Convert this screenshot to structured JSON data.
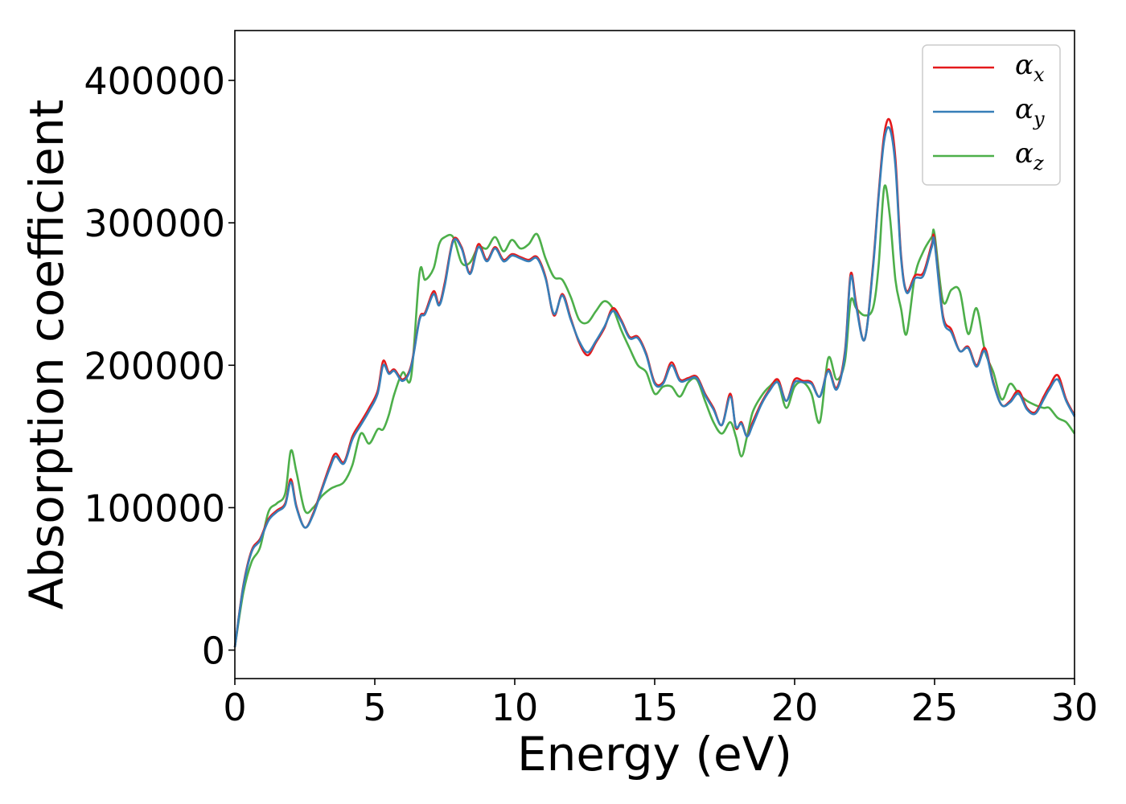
{
  "chart_data": {
    "type": "line",
    "xlabel": "Energy (eV)",
    "ylabel": "Absorption coefficient",
    "xlim": [
      0,
      30
    ],
    "ylim": [
      -20000,
      435000
    ],
    "xticks": [
      "0",
      "5",
      "10",
      "15",
      "20",
      "25",
      "30"
    ],
    "yticks": [
      "0",
      "100000",
      "200000",
      "300000",
      "400000"
    ],
    "grid": false,
    "legend_position": "top-right",
    "series": [
      {
        "name": "α_x",
        "base": "α",
        "sub": "x",
        "color": "#e41a1c",
        "x": [
          0,
          0.3,
          0.6,
          0.9,
          1.2,
          1.5,
          1.8,
          2.0,
          2.2,
          2.5,
          2.8,
          3.1,
          3.4,
          3.6,
          3.9,
          4.2,
          4.5,
          4.8,
          5.1,
          5.3,
          5.5,
          5.7,
          6.0,
          6.3,
          6.6,
          6.8,
          7.1,
          7.3,
          7.5,
          7.8,
          8.1,
          8.4,
          8.7,
          9.0,
          9.3,
          9.6,
          9.9,
          10.2,
          10.5,
          10.8,
          11.1,
          11.4,
          11.7,
          12.0,
          12.3,
          12.6,
          12.9,
          13.2,
          13.5,
          13.8,
          14.1,
          14.4,
          14.7,
          15.0,
          15.3,
          15.6,
          15.9,
          16.2,
          16.5,
          16.8,
          17.1,
          17.4,
          17.7,
          17.9,
          18.1,
          18.3,
          18.5,
          18.8,
          19.1,
          19.4,
          19.7,
          20.0,
          20.3,
          20.6,
          20.9,
          21.2,
          21.5,
          21.8,
          22.0,
          22.2,
          22.5,
          22.8,
          23.0,
          23.2,
          23.4,
          23.6,
          23.8,
          24.0,
          24.3,
          24.6,
          24.9,
          25.0,
          25.3,
          25.6,
          25.9,
          26.2,
          26.5,
          26.8,
          27.1,
          27.4,
          27.7,
          28.0,
          28.3,
          28.6,
          28.9,
          29.1,
          29.4,
          29.7,
          30.0
        ],
        "y": [
          2000,
          45000,
          70000,
          78000,
          92000,
          98000,
          103000,
          120000,
          101000,
          86000,
          96000,
          113000,
          130000,
          138000,
          132000,
          150000,
          160000,
          170000,
          182000,
          203000,
          195000,
          197000,
          190000,
          200000,
          233000,
          237000,
          252000,
          243000,
          258000,
          288000,
          283000,
          265000,
          285000,
          274000,
          283000,
          274000,
          278000,
          276000,
          274000,
          276000,
          262000,
          235000,
          250000,
          233000,
          216000,
          207000,
          216000,
          226000,
          240000,
          232000,
          220000,
          220000,
          208000,
          188000,
          188000,
          202000,
          190000,
          191000,
          192000,
          180000,
          170000,
          158000,
          180000,
          156000,
          160000,
          150000,
          160000,
          173000,
          183000,
          190000,
          175000,
          190000,
          189000,
          188000,
          178000,
          197000,
          184000,
          210000,
          264000,
          243000,
          218000,
          270000,
          320000,
          362000,
          372000,
          345000,
          278000,
          252000,
          263000,
          265000,
          285000,
          288000,
          235000,
          225000,
          210000,
          213000,
          200000,
          212000,
          188000,
          172000,
          175000,
          182000,
          170000,
          167000,
          178000,
          185000,
          193000,
          176000,
          165000
        ]
      },
      {
        "name": "α_y",
        "base": "α",
        "sub": "y",
        "color": "#377eb8",
        "x": [
          0,
          0.3,
          0.6,
          0.9,
          1.2,
          1.5,
          1.8,
          2.0,
          2.2,
          2.5,
          2.8,
          3.1,
          3.4,
          3.6,
          3.9,
          4.2,
          4.5,
          4.8,
          5.1,
          5.3,
          5.5,
          5.7,
          6.0,
          6.3,
          6.6,
          6.8,
          7.1,
          7.3,
          7.5,
          7.8,
          8.1,
          8.4,
          8.7,
          9.0,
          9.3,
          9.6,
          9.9,
          10.2,
          10.5,
          10.8,
          11.1,
          11.4,
          11.7,
          12.0,
          12.3,
          12.6,
          12.9,
          13.2,
          13.5,
          13.8,
          14.1,
          14.4,
          14.7,
          15.0,
          15.3,
          15.6,
          15.9,
          16.2,
          16.5,
          16.8,
          17.1,
          17.4,
          17.7,
          17.9,
          18.1,
          18.3,
          18.5,
          18.8,
          19.1,
          19.4,
          19.7,
          20.0,
          20.3,
          20.6,
          20.9,
          21.2,
          21.5,
          21.8,
          22.0,
          22.2,
          22.5,
          22.8,
          23.0,
          23.2,
          23.4,
          23.6,
          23.8,
          24.0,
          24.3,
          24.6,
          24.9,
          25.0,
          25.3,
          25.6,
          25.9,
          26.2,
          26.5,
          26.8,
          27.1,
          27.4,
          27.7,
          28.0,
          28.3,
          28.6,
          28.9,
          29.1,
          29.4,
          29.7,
          30.0
        ],
        "y": [
          2000,
          44000,
          69000,
          77000,
          91000,
          97000,
          102000,
          118000,
          100000,
          86000,
          95000,
          112000,
          128000,
          136000,
          131000,
          148000,
          158000,
          168000,
          180000,
          200000,
          194000,
          196000,
          189000,
          199000,
          232000,
          236000,
          250000,
          242000,
          256000,
          287000,
          282000,
          264000,
          283000,
          273000,
          282000,
          273000,
          277000,
          275000,
          273000,
          275000,
          261000,
          236000,
          249000,
          232000,
          217000,
          209000,
          217000,
          227000,
          238000,
          231000,
          219000,
          219000,
          207000,
          187000,
          187000,
          200000,
          189000,
          190000,
          191000,
          179000,
          169000,
          158000,
          178000,
          157000,
          159000,
          150000,
          158000,
          172000,
          182000,
          188000,
          175000,
          188000,
          188000,
          187000,
          178000,
          196000,
          183000,
          208000,
          262000,
          241000,
          218000,
          268000,
          318000,
          358000,
          366000,
          340000,
          276000,
          251000,
          261000,
          263000,
          283000,
          286000,
          233000,
          223000,
          210000,
          212000,
          199000,
          210000,
          187000,
          172000,
          174000,
          180000,
          169000,
          166000,
          176000,
          183000,
          190000,
          175000,
          164000
        ]
      },
      {
        "name": "α_z",
        "base": "α",
        "sub": "z",
        "color": "#4daf4a",
        "x": [
          0,
          0.3,
          0.6,
          0.9,
          1.2,
          1.5,
          1.8,
          2.0,
          2.2,
          2.5,
          2.8,
          3.1,
          3.4,
          3.6,
          3.9,
          4.2,
          4.5,
          4.8,
          5.1,
          5.3,
          5.5,
          5.7,
          6.0,
          6.3,
          6.6,
          6.8,
          7.1,
          7.3,
          7.5,
          7.8,
          8.1,
          8.4,
          8.7,
          9.0,
          9.3,
          9.6,
          9.9,
          10.2,
          10.5,
          10.8,
          11.1,
          11.4,
          11.7,
          12.0,
          12.3,
          12.6,
          12.9,
          13.2,
          13.5,
          13.8,
          14.1,
          14.4,
          14.7,
          15.0,
          15.3,
          15.6,
          15.9,
          16.2,
          16.5,
          16.8,
          17.1,
          17.4,
          17.7,
          17.9,
          18.1,
          18.3,
          18.5,
          18.8,
          19.1,
          19.4,
          19.7,
          20.0,
          20.3,
          20.6,
          20.9,
          21.2,
          21.5,
          21.8,
          22.0,
          22.2,
          22.5,
          22.8,
          23.0,
          23.2,
          23.4,
          23.6,
          23.8,
          24.0,
          24.3,
          24.6,
          24.9,
          25.0,
          25.3,
          25.6,
          25.9,
          26.2,
          26.5,
          26.8,
          27.1,
          27.4,
          27.7,
          28.0,
          28.3,
          28.6,
          28.9,
          29.1,
          29.4,
          29.7,
          30.0
        ],
        "y": [
          2000,
          40000,
          62000,
          72000,
          97000,
          103000,
          110000,
          140000,
          125000,
          98000,
          100000,
          108000,
          113000,
          115000,
          118000,
          130000,
          152000,
          145000,
          155000,
          155000,
          165000,
          180000,
          195000,
          192000,
          265000,
          260000,
          268000,
          285000,
          290000,
          290000,
          272000,
          272000,
          283000,
          282000,
          290000,
          280000,
          288000,
          282000,
          285000,
          292000,
          275000,
          262000,
          260000,
          248000,
          232000,
          230000,
          238000,
          245000,
          240000,
          225000,
          212000,
          200000,
          195000,
          180000,
          185000,
          185000,
          178000,
          188000,
          190000,
          175000,
          160000,
          152000,
          160000,
          150000,
          136000,
          150000,
          167000,
          178000,
          185000,
          188000,
          170000,
          185000,
          188000,
          180000,
          160000,
          205000,
          190000,
          203000,
          245000,
          240000,
          235000,
          240000,
          270000,
          325000,
          305000,
          260000,
          240000,
          222000,
          263000,
          280000,
          290000,
          292000,
          245000,
          253000,
          252000,
          222000,
          240000,
          210000,
          195000,
          176000,
          187000,
          180000,
          175000,
          172000,
          170000,
          170000,
          163000,
          160000,
          152000
        ]
      }
    ]
  }
}
